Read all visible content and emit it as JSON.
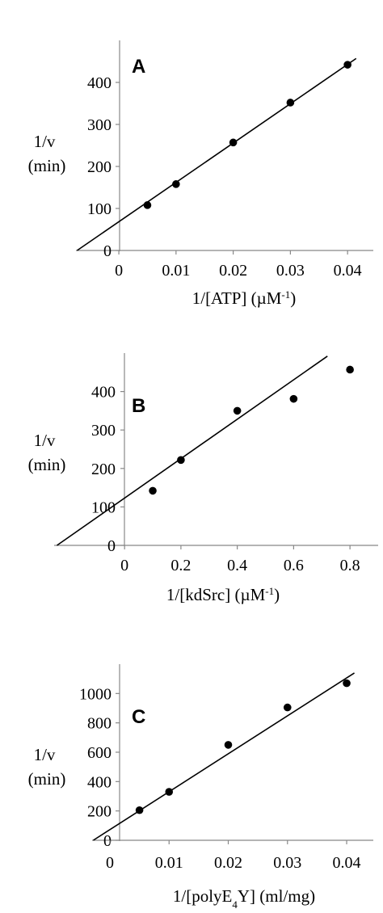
{
  "chart_data": [
    {
      "type": "scatter",
      "panel_label": "A",
      "ylabel_line1": "1/v",
      "ylabel_line2": "(min)",
      "xlabel_main": "1/[ATP] (µM",
      "xlabel_sup": "-1",
      "xlabel_close": ")",
      "xlabel_sub": "",
      "xlabel_tail": "",
      "x_ticks": [
        "0",
        "0.01",
        "0.02",
        "0.03",
        "0.04"
      ],
      "y_ticks": [
        "0",
        "100",
        "200",
        "300",
        "400"
      ],
      "xlim": [
        -0.0075,
        0.0445
      ],
      "ylim": [
        0,
        500
      ],
      "points": [
        {
          "x": 0.005,
          "y": 108
        },
        {
          "x": 0.01,
          "y": 158
        },
        {
          "x": 0.02,
          "y": 257
        },
        {
          "x": 0.03,
          "y": 352
        },
        {
          "x": 0.04,
          "y": 442
        }
      ],
      "fit_line": {
        "x": [
          -0.0073,
          0.0415
        ],
        "y": [
          0,
          457
        ]
      },
      "grid": false,
      "legend": "none"
    },
    {
      "type": "scatter",
      "panel_label": "B",
      "ylabel_line1": "1/v",
      "ylabel_line2": "(min)",
      "xlabel_main": "1/[kdSrc] (µM",
      "xlabel_sup": "-1",
      "xlabel_close": ")",
      "xlabel_sub": "",
      "xlabel_tail": "",
      "x_ticks": [
        "0",
        "0.2",
        "0.4",
        "0.6",
        "0.8"
      ],
      "y_ticks": [
        "0",
        "100",
        "200",
        "300",
        "400"
      ],
      "xlim": [
        -0.25,
        0.9
      ],
      "ylim": [
        0,
        500
      ],
      "points": [
        {
          "x": 0.1,
          "y": 142
        },
        {
          "x": 0.2,
          "y": 222
        },
        {
          "x": 0.4,
          "y": 350
        },
        {
          "x": 0.6,
          "y": 381
        },
        {
          "x": 0.8,
          "y": 457
        }
      ],
      "fit_line": {
        "x": [
          -0.24,
          0.72
        ],
        "y": [
          0,
          492
        ]
      },
      "grid": false,
      "legend": "none"
    },
    {
      "type": "scatter",
      "panel_label": "C",
      "ylabel_line1": "1/v",
      "ylabel_line2": "(min)",
      "xlabel_main": "1/[polyE",
      "xlabel_sup": "",
      "xlabel_close": "",
      "xlabel_sub": "4",
      "xlabel_tail": "Y] (ml/mg)",
      "x_ticks": [
        "0",
        "0.01",
        "0.02",
        "0.03",
        "0.04"
      ],
      "y_ticks": [
        "0",
        "200",
        "400",
        "600",
        "800",
        "1000"
      ],
      "xlim": [
        -0.003,
        0.0445
      ],
      "ylim": [
        0,
        1200
      ],
      "points": [
        {
          "x": 0.005,
          "y": 205
        },
        {
          "x": 0.01,
          "y": 330
        },
        {
          "x": 0.02,
          "y": 650
        },
        {
          "x": 0.03,
          "y": 905
        },
        {
          "x": 0.04,
          "y": 1070
        }
      ],
      "fit_line": {
        "x": [
          -0.0028,
          0.0413
        ],
        "y": [
          0,
          1140
        ]
      },
      "grid": false,
      "legend": "none"
    }
  ]
}
